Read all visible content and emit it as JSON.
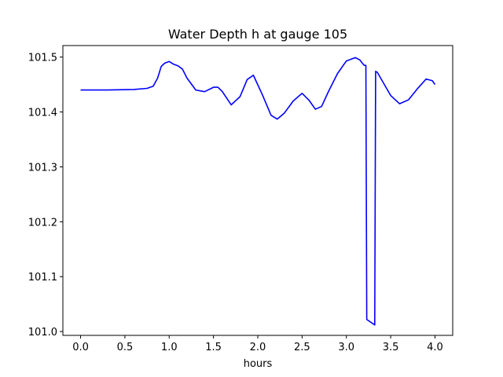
{
  "chart_data": {
    "type": "line",
    "title": "Water Depth h at gauge 105",
    "xlabel": "hours",
    "ylabel": "",
    "xlim": [
      -0.2,
      4.2
    ],
    "ylim": [
      100.993,
      101.521
    ],
    "grid": false,
    "legend": "none",
    "x_ticks": [
      0.0,
      0.5,
      1.0,
      1.5,
      2.0,
      2.5,
      3.0,
      3.5,
      4.0
    ],
    "x_tick_labels": [
      "0.0",
      "0.5",
      "1.0",
      "1.5",
      "2.0",
      "2.5",
      "3.0",
      "3.5",
      "4.0"
    ],
    "y_ticks": [
      101.0,
      101.1,
      101.2,
      101.3,
      101.4,
      101.5
    ],
    "y_tick_labels": [
      "101.0",
      "101.1",
      "101.2",
      "101.3",
      "101.4",
      "101.5"
    ],
    "series": [
      {
        "color": "#0000ff",
        "x": [
          0.0,
          0.3,
          0.6,
          0.75,
          0.82,
          0.87,
          0.91,
          0.95,
          1.0,
          1.05,
          1.1,
          1.15,
          1.2,
          1.3,
          1.4,
          1.5,
          1.55,
          1.6,
          1.7,
          1.8,
          1.88,
          1.95,
          2.05,
          2.15,
          2.22,
          2.3,
          2.4,
          2.5,
          2.58,
          2.65,
          2.72,
          2.8,
          2.9,
          3.0,
          3.1,
          3.15,
          3.2,
          3.22,
          3.23,
          3.32,
          3.33,
          3.35,
          3.4,
          3.5,
          3.6,
          3.7,
          3.8,
          3.9,
          3.97,
          4.0
        ],
        "y": [
          101.44,
          101.44,
          101.441,
          101.443,
          101.447,
          101.462,
          101.483,
          101.489,
          101.492,
          101.487,
          101.484,
          101.478,
          101.462,
          101.44,
          101.437,
          101.445,
          101.445,
          101.437,
          101.413,
          101.428,
          101.459,
          101.467,
          101.432,
          101.394,
          101.387,
          101.398,
          101.42,
          101.434,
          101.421,
          101.405,
          101.41,
          101.438,
          101.47,
          101.493,
          101.499,
          101.495,
          101.485,
          101.485,
          101.022,
          101.012,
          101.474,
          101.472,
          101.458,
          101.43,
          101.415,
          101.422,
          101.442,
          101.46,
          101.457,
          101.45
        ]
      }
    ]
  }
}
